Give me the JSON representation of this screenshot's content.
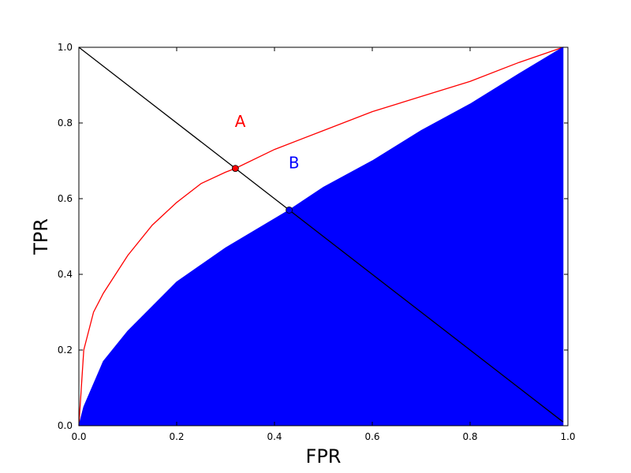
{
  "chart_data": {
    "type": "line",
    "xlabel": "FPR",
    "ylabel": "TPR",
    "xlim": [
      0,
      1
    ],
    "ylim": [
      0,
      1
    ],
    "x_ticks": [
      "0.0",
      "0.2",
      "0.4",
      "0.6",
      "0.8",
      "1.0"
    ],
    "y_ticks": [
      "0.0",
      "0.2",
      "0.4",
      "0.6",
      "0.8",
      "1.0"
    ],
    "grid": false,
    "series": [
      {
        "color": "#ff0000",
        "style": "line",
        "points": [
          [
            0,
            0
          ],
          [
            0.01,
            0.2
          ],
          [
            0.03,
            0.3
          ],
          [
            0.05,
            0.35
          ],
          [
            0.1,
            0.45
          ],
          [
            0.15,
            0.53
          ],
          [
            0.2,
            0.59
          ],
          [
            0.25,
            0.64
          ],
          [
            0.3,
            0.67
          ],
          [
            0.32,
            0.68
          ],
          [
            0.4,
            0.73
          ],
          [
            0.5,
            0.78
          ],
          [
            0.6,
            0.83
          ],
          [
            0.7,
            0.87
          ],
          [
            0.8,
            0.91
          ],
          [
            0.9,
            0.96
          ],
          [
            0.99,
            1.0
          ]
        ]
      },
      {
        "color": "#0000ff",
        "style": "filled-area",
        "points": [
          [
            0,
            0
          ],
          [
            0.01,
            0.05
          ],
          [
            0.05,
            0.17
          ],
          [
            0.1,
            0.25
          ],
          [
            0.2,
            0.38
          ],
          [
            0.3,
            0.47
          ],
          [
            0.43,
            0.57
          ],
          [
            0.5,
            0.63
          ],
          [
            0.6,
            0.7
          ],
          [
            0.7,
            0.78
          ],
          [
            0.8,
            0.85
          ],
          [
            0.9,
            0.93
          ],
          [
            0.99,
            1.0
          ]
        ]
      },
      {
        "color": "#000000",
        "style": "line",
        "points": [
          [
            0,
            1
          ],
          [
            0.99,
            0.01
          ]
        ]
      }
    ],
    "markers": [
      {
        "label": "A",
        "x": 0.32,
        "y": 0.68,
        "color": "#ff0000"
      },
      {
        "label": "B",
        "x": 0.43,
        "y": 0.57,
        "color": "#0000ff"
      }
    ],
    "annotations": [
      {
        "text": "A",
        "x": 0.33,
        "y": 0.79,
        "color": "#ff0000"
      },
      {
        "text": "B",
        "x": 0.44,
        "y": 0.68,
        "color": "#0000ff"
      }
    ]
  }
}
